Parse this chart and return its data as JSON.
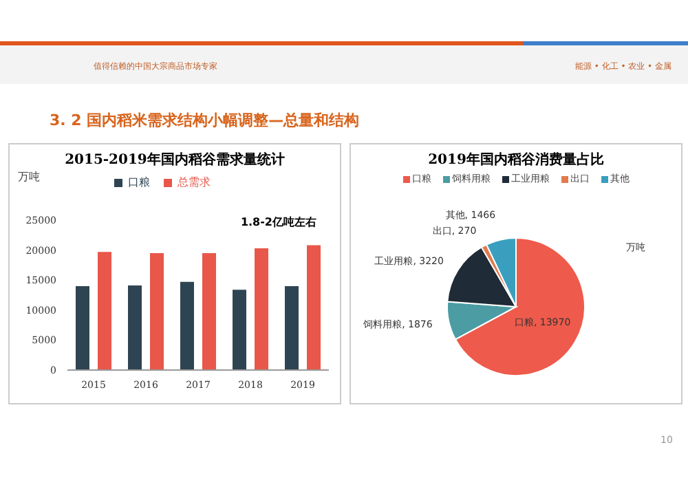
{
  "chart_data": [
    {
      "type": "bar",
      "title": "2015-2019年国内稻谷需求量统计",
      "ylabel": "万吨",
      "categories": [
        "2015",
        "2016",
        "2017",
        "2018",
        "2019"
      ],
      "series": [
        {
          "name": "口粮",
          "color": "#2f4452",
          "values": [
            14000,
            14100,
            14700,
            13400,
            14000
          ]
        },
        {
          "name": "总需求",
          "color": "#e8574a",
          "values": [
            19700,
            19500,
            19500,
            20300,
            20800
          ]
        }
      ],
      "ylim": [
        0,
        25000
      ],
      "yticks": [
        0,
        5000,
        10000,
        15000,
        20000,
        25000
      ],
      "grid": false,
      "legend": "top",
      "annotations": [
        "3. 2  国内稻米需求结构小幅调整—总量和结构",
        "值得信赖的中国大宗商品市场专家",
        "能源 • 化工 • 农业 • 金属",
        {
          "text": "1.8-2亿吨左右",
          "x": "2019",
          "y": 21500
        },
        "10"
      ]
    },
    {
      "type": "pie",
      "title": "2019年国内稻谷消费量占比",
      "categories": [
        "口粮",
        "饲料用粮",
        "工业用粮",
        "出口",
        "其他"
      ],
      "values": [
        13970,
        1876,
        3220,
        270,
        1466
      ],
      "colors": [
        "#ee5a4b",
        "#4b9ca3",
        "#1f2b36",
        "#e07b4f",
        "#3a9fbf"
      ],
      "value_labels": [
        "口粮, 13970",
        "饲料用粮, 1876",
        "工业用粮, 3220",
        "出口, 270",
        "其他, 1466"
      ],
      "legend": "top",
      "annotations": [
        "万吨"
      ]
    }
  ]
}
